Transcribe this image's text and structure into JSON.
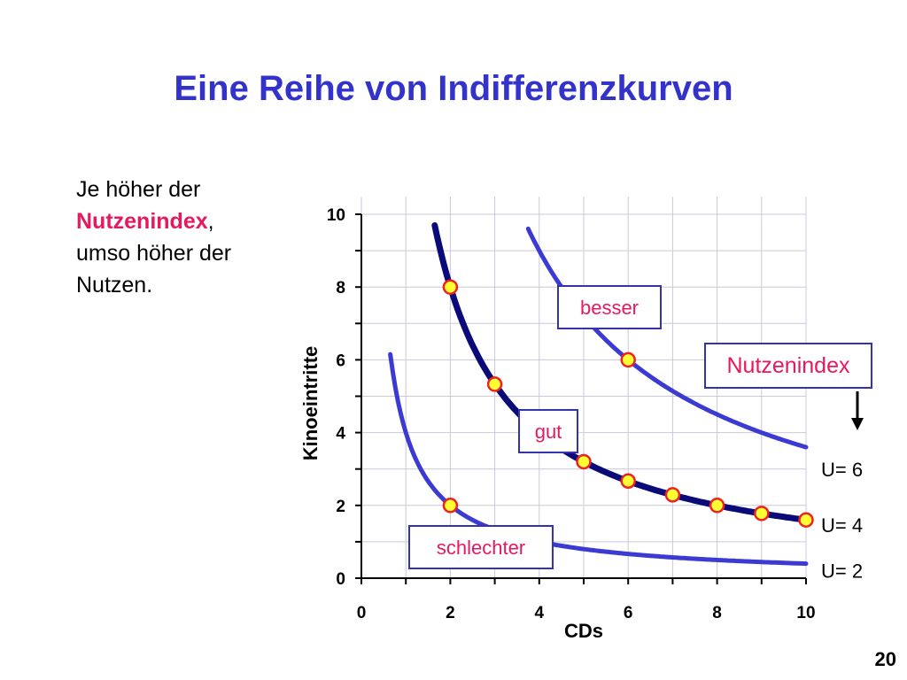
{
  "slide": {
    "title": "Eine Reihe von Indifferenzkurven",
    "text_line1": "Je höher der",
    "text_highlight": "Nutzenindex",
    "text_comma": ",",
    "text_line3": "umso höher der",
    "text_line4": "Nutzen.",
    "page_number": "20",
    "highlight_color": "#e6195f",
    "title_color": "#3333cc"
  },
  "chart_data": {
    "type": "line",
    "xlabel": "CDs",
    "ylabel": "Kinoeintritte",
    "xlim": [
      0,
      10
    ],
    "ylim": [
      0,
      10
    ],
    "x_ticks": [
      0,
      2,
      4,
      6,
      8,
      10
    ],
    "y_ticks": [
      0,
      2,
      4,
      6,
      8,
      10
    ],
    "grid": true,
    "series": [
      {
        "name": "U= 2",
        "k": 4,
        "x_range": [
          0.65,
          10
        ],
        "color": "#3b3bd4",
        "points": [
          [
            2,
            2
          ]
        ]
      },
      {
        "name": "U= 4",
        "k": 16,
        "x_range": [
          1.65,
          10
        ],
        "color": "#0a0a78",
        "points": [
          [
            2,
            8
          ],
          [
            3,
            5.33
          ],
          [
            5,
            3.2
          ],
          [
            6,
            2.67
          ],
          [
            7,
            2.29
          ],
          [
            8,
            2
          ],
          [
            9,
            1.78
          ],
          [
            10,
            1.6
          ]
        ]
      },
      {
        "name": "U= 6",
        "k": 36,
        "x_range": [
          3.75,
          10
        ],
        "color": "#3b3bd4",
        "points": [
          [
            6,
            6
          ]
        ]
      }
    ],
    "annotations": {
      "besser": "besser",
      "gut": "gut",
      "schlechter": "schlechter",
      "nutzenindex": "Nutzenindex"
    },
    "marker_fill": "#ffff33",
    "marker_stroke": "#ee2222",
    "box_border": "#3333aa"
  }
}
